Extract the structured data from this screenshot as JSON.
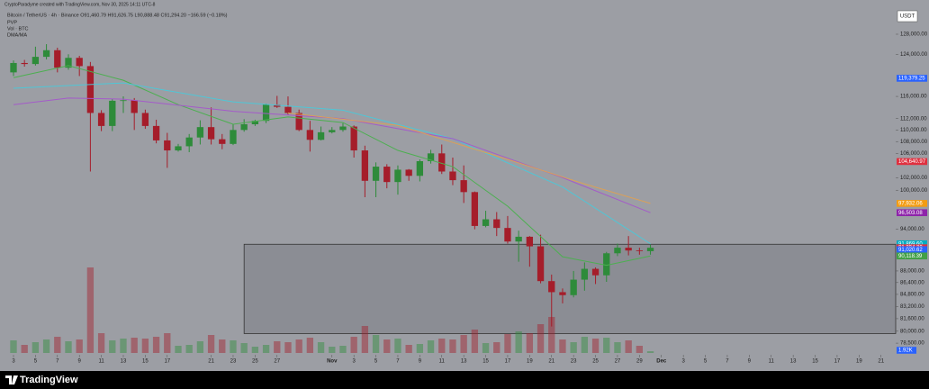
{
  "header": {
    "credit": "CryptoParadyme created with TradingView.com, Nov 30, 2025 14:11 UTC-8",
    "symbol_line": "Bitcoin / TetherUS · 4h · Binance  O91,460.79  H91,626.75  L90,888.48  C91,294.20  −166.59 (−0.18%)",
    "indicators": [
      "PVP",
      "Vol · BTC",
      "DMA/MA"
    ],
    "currency": "USDT"
  },
  "chart_data": {
    "type": "candlestick",
    "x": [
      "2025-10-03",
      "2025-10-04",
      "2025-10-05",
      "2025-10-06",
      "2025-10-07",
      "2025-10-08",
      "2025-10-09",
      "2025-10-10",
      "2025-10-11",
      "2025-10-12",
      "2025-10-13",
      "2025-10-14",
      "2025-10-15",
      "2025-10-16",
      "2025-10-17",
      "2025-10-18",
      "2025-10-19",
      "2025-10-20",
      "2025-10-21",
      "2025-10-22",
      "2025-10-23",
      "2025-10-24",
      "2025-10-25",
      "2025-10-26",
      "2025-10-27",
      "2025-10-28",
      "2025-10-29",
      "2025-10-30",
      "2025-10-31",
      "2025-11-01",
      "2025-11-02",
      "2025-11-03",
      "2025-11-04",
      "2025-11-05",
      "2025-11-06",
      "2025-11-07",
      "2025-11-08",
      "2025-11-09",
      "2025-11-10",
      "2025-11-11",
      "2025-11-12",
      "2025-11-13",
      "2025-11-14",
      "2025-11-15",
      "2025-11-16",
      "2025-11-17",
      "2025-11-18",
      "2025-11-19",
      "2025-11-20",
      "2025-11-21",
      "2025-11-22",
      "2025-11-23",
      "2025-11-24",
      "2025-11-25",
      "2025-11-26",
      "2025-11-27",
      "2025-11-28",
      "2025-11-29",
      "2025-11-30"
    ],
    "open": [
      120500,
      122300,
      122100,
      123500,
      124800,
      121400,
      123300,
      121700,
      113000,
      110700,
      115200,
      115300,
      113000,
      110700,
      108200,
      106500,
      107200,
      108700,
      110500,
      108400,
      107600,
      110000,
      111000,
      111600,
      114500,
      114100,
      113000,
      110000,
      108300,
      109600,
      110000,
      110600,
      106500,
      101500,
      103800,
      101300,
      103300,
      102300,
      104700,
      106000,
      103000,
      101600,
      99700,
      94500,
      95500,
      94200,
      92200,
      92900,
      91500,
      86600,
      85100,
      84700,
      86800,
      88300,
      87400,
      90500,
      91300,
      90900,
      90800
    ],
    "high": [
      122800,
      122900,
      125500,
      126000,
      125300,
      124000,
      123700,
      122500,
      113500,
      115500,
      116000,
      115700,
      113600,
      111800,
      109500,
      107600,
      109300,
      111700,
      114000,
      109300,
      111000,
      111900,
      111800,
      114700,
      116100,
      116000,
      113600,
      111600,
      110600,
      110500,
      111200,
      110800,
      107300,
      104500,
      104200,
      104000,
      103400,
      105000,
      106600,
      107500,
      105300,
      104000,
      99800,
      96800,
      96600,
      96000,
      93800,
      93000,
      93200,
      87500,
      85600,
      88000,
      89200,
      88500,
      90700,
      91900,
      93000,
      91300,
      91700
    ],
    "low": [
      119800,
      121600,
      121800,
      123000,
      120500,
      121000,
      119800,
      103000,
      109800,
      109800,
      113000,
      110000,
      110200,
      107700,
      103600,
      106300,
      106200,
      107500,
      107500,
      106700,
      107400,
      109700,
      110700,
      111200,
      113900,
      112600,
      109800,
      106300,
      108200,
      109400,
      109700,
      105300,
      98900,
      98900,
      100300,
      99300,
      101500,
      101400,
      104300,
      102600,
      100800,
      98000,
      94000,
      94300,
      93000,
      91900,
      89300,
      88600,
      86300,
      80600,
      83600,
      84400,
      85300,
      86200,
      86500,
      90100,
      90200,
      90300,
      90300
    ],
    "close": [
      122300,
      122100,
      123500,
      124800,
      121400,
      123300,
      121700,
      113000,
      110700,
      115200,
      115300,
      113000,
      110700,
      108200,
      106500,
      107200,
      108700,
      110500,
      108400,
      107600,
      110000,
      111000,
      111600,
      114500,
      114100,
      113000,
      110000,
      108300,
      109600,
      110000,
      110600,
      106500,
      101500,
      103800,
      101300,
      103300,
      102300,
      104700,
      106000,
      103000,
      101600,
      99700,
      94500,
      95500,
      94200,
      92200,
      92900,
      91500,
      86600,
      85100,
      84700,
      86800,
      88300,
      87400,
      90500,
      91300,
      90900,
      90800,
      91294.2
    ],
    "volume": [
      14000,
      9000,
      12000,
      15000,
      18000,
      13000,
      15000,
      95000,
      22000,
      14000,
      16000,
      17000,
      16000,
      18000,
      22000,
      8000,
      9000,
      13000,
      20000,
      15000,
      14000,
      11000,
      7000,
      9000,
      13000,
      12000,
      15000,
      17000,
      12000,
      7000,
      8000,
      18000,
      30000,
      20000,
      15000,
      16000,
      9000,
      10000,
      14000,
      16000,
      15000,
      20000,
      26000,
      11000,
      12000,
      21000,
      24000,
      22000,
      32000,
      40000,
      15000,
      12000,
      18000,
      16000,
      17000,
      12000,
      14000,
      8000,
      1920
    ],
    "up_color": "#2e8b3a",
    "down_color": "#a51d2a",
    "volume_ylim": [
      0,
      100000
    ],
    "log_scale": true,
    "ylim": [
      77290,
      133590
    ],
    "yticks": [
      {
        "value": 128000,
        "label": "128,000.00"
      },
      {
        "value": 124000,
        "label": "124,000.00"
      },
      {
        "value": 116000,
        "label": "116,000.00"
      },
      {
        "value": 112000,
        "label": "112,000.00"
      },
      {
        "value": 110000,
        "label": "110,000.00"
      },
      {
        "value": 108000,
        "label": "108,000.00"
      },
      {
        "value": 106000,
        "label": "106,000.00"
      },
      {
        "value": 102000,
        "label": "102,000.00"
      },
      {
        "value": 100000,
        "label": "100,000.00"
      },
      {
        "value": 94000,
        "label": "94,000.00"
      },
      {
        "value": 88000,
        "label": "88,000.00"
      },
      {
        "value": 86400,
        "label": "86,400.00"
      },
      {
        "value": 84800,
        "label": "84,800.00"
      },
      {
        "value": 83200,
        "label": "83,200.00"
      },
      {
        "value": 81600,
        "label": "81,600.00"
      },
      {
        "value": 80000,
        "label": "80,000.00"
      },
      {
        "value": 78500,
        "label": "78,500.00"
      }
    ],
    "xlim": [
      "2025-10-02T06:30Z",
      "2025-12-22T20:00Z"
    ],
    "xticks": [
      {
        "value": "2025-10-03",
        "label": "3"
      },
      {
        "value": "2025-10-05",
        "label": "5"
      },
      {
        "value": "2025-10-07",
        "label": "7"
      },
      {
        "value": "2025-10-09",
        "label": "9"
      },
      {
        "value": "2025-10-11",
        "label": "11"
      },
      {
        "value": "2025-10-13",
        "label": "13"
      },
      {
        "value": "2025-10-15",
        "label": "15"
      },
      {
        "value": "2025-10-17",
        "label": "17"
      },
      {
        "value": "2025-10-21",
        "label": "21"
      },
      {
        "value": "2025-10-23",
        "label": "23"
      },
      {
        "value": "2025-10-25",
        "label": "25"
      },
      {
        "value": "2025-10-27",
        "label": "27"
      },
      {
        "value": "2025-11-01",
        "label": "Nov"
      },
      {
        "value": "2025-11-03",
        "label": "3"
      },
      {
        "value": "2025-11-05",
        "label": "5"
      },
      {
        "value": "2025-11-07",
        "label": "7"
      },
      {
        "value": "2025-11-09",
        "label": "9"
      },
      {
        "value": "2025-11-11",
        "label": "11"
      },
      {
        "value": "2025-11-13",
        "label": "13"
      },
      {
        "value": "2025-11-15",
        "label": "15"
      },
      {
        "value": "2025-11-17",
        "label": "17"
      },
      {
        "value": "2025-11-19",
        "label": "19"
      },
      {
        "value": "2025-11-21",
        "label": "21"
      },
      {
        "value": "2025-11-23",
        "label": "23"
      },
      {
        "value": "2025-11-25",
        "label": "25"
      },
      {
        "value": "2025-11-27",
        "label": "27"
      },
      {
        "value": "2025-11-29",
        "label": "29"
      },
      {
        "value": "2025-12-01",
        "label": "Dec"
      },
      {
        "value": "2025-12-03",
        "label": "3"
      },
      {
        "value": "2025-12-05",
        "label": "5"
      },
      {
        "value": "2025-12-07",
        "label": "7"
      },
      {
        "value": "2025-12-09",
        "label": "9"
      },
      {
        "value": "2025-12-11",
        "label": "11"
      },
      {
        "value": "2025-12-13",
        "label": "13"
      },
      {
        "value": "2025-12-15",
        "label": "15"
      },
      {
        "value": "2025-12-17",
        "label": "17"
      },
      {
        "value": "2025-12-19",
        "label": "19"
      },
      {
        "value": "2025-12-21",
        "label": "21"
      }
    ],
    "overlays": [
      {
        "color": "#4caf50",
        "x": [
          "2025-10-03",
          "2025-10-08",
          "2025-10-13",
          "2025-10-18",
          "2025-10-23",
          "2025-10-28",
          "2025-11-02",
          "2025-11-07",
          "2025-11-12",
          "2025-11-17",
          "2025-11-22",
          "2025-11-26",
          "2025-11-30"
        ],
        "values": [
          119500,
          121800,
          119000,
          114500,
          111000,
          112300,
          111300,
          106500,
          103800,
          97500,
          90000,
          88800,
          90118.39
        ]
      },
      {
        "color": "#4fc6d6",
        "x": [
          "2025-10-03",
          "2025-10-13",
          "2025-10-23",
          "2025-11-02",
          "2025-11-12",
          "2025-11-22",
          "2025-11-30"
        ],
        "values": [
          117500,
          118500,
          115000,
          113500,
          108500,
          100500,
          91869.6
        ]
      },
      {
        "color": "#a45bc9",
        "x": [
          "2025-10-03",
          "2025-10-08",
          "2025-10-13",
          "2025-10-23",
          "2025-11-02",
          "2025-11-12",
          "2025-11-22",
          "2025-11-30"
        ],
        "values": [
          114500,
          115700,
          115500,
          113300,
          112000,
          108500,
          102000,
          96503.08
        ]
      },
      {
        "color": "#d9a05a",
        "x": [
          "2025-10-28",
          "2025-11-07",
          "2025-11-17",
          "2025-11-24",
          "2025-11-30"
        ],
        "values": [
          113000,
          110800,
          105000,
          101000,
          97932.06
        ]
      }
    ],
    "zone": {
      "x_start": "2025-10-24T12:00Z",
      "top": 91800,
      "bottom": 79700
    },
    "price_labels": [
      {
        "value": 119379.25,
        "label": "119,379.25",
        "color": "#2962ff"
      },
      {
        "value": 104640.97,
        "label": "104,640.97",
        "color": "#e0303f"
      },
      {
        "value": 97932.06,
        "label": "97,932.06",
        "color": "#f39c12"
      },
      {
        "value": 96503.08,
        "label": "96,503.08",
        "color": "#8e24aa"
      },
      {
        "value": 91869.6,
        "label": "91,869.60",
        "color": "#00acc1"
      },
      {
        "value": 91294.2,
        "label": "91,294.20",
        "color": "#e0303f"
      },
      {
        "value": 91020.62,
        "label": "91,020.62",
        "color": "#2962ff"
      },
      {
        "value": 90118.39,
        "label": "90,118.39",
        "color": "#43a047"
      }
    ],
    "countdown": "01:45:49",
    "volume_label": {
      "value": 1920,
      "label": "1.92K",
      "color": "#2962ff"
    }
  },
  "footer": {
    "brand": "TradingView"
  }
}
